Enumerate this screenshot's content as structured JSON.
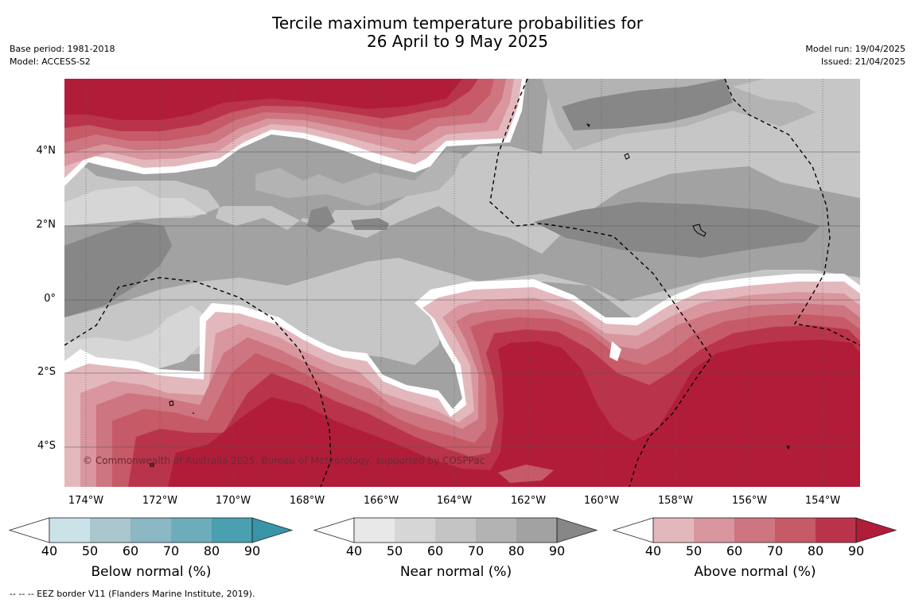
{
  "title_line1": "Tercile maximum temperature probabilities for",
  "title_line2": "26 April to 9 May 2025",
  "meta_left": [
    "Base period: 1981-2018",
    "Model: ACCESS-S2"
  ],
  "meta_right": [
    "Model run: 19/04/2025",
    "Issued: 21/04/2025"
  ],
  "lat_labels": [
    "4°N",
    "2°N",
    "0°",
    "2°S",
    "4°S"
  ],
  "lon_labels": [
    "174°W",
    "172°W",
    "170°W",
    "168°W",
    "166°W",
    "164°W",
    "162°W",
    "160°W",
    "158°W",
    "156°W",
    "154°W"
  ],
  "copyright": "© Commonwealth of Australia 2025, Bureau of Meteorology, supported by COSPPac",
  "colorbars": [
    {
      "title": "Below normal (%)",
      "ticks": [
        "40",
        "50",
        "60",
        "70",
        "80",
        "90"
      ],
      "colors": [
        "#cbe2e9",
        "#a9c7cd",
        "#8cb7c4",
        "#6dadbb",
        "#4a9fb0",
        "#3895a8"
      ]
    },
    {
      "title": "Near normal (%)",
      "ticks": [
        "40",
        "50",
        "60",
        "70",
        "80",
        "90"
      ],
      "colors": [
        "#e8e8e8",
        "#d6d6d6",
        "#c4c4c4",
        "#b3b3b3",
        "#a2a2a2",
        "#878787"
      ]
    },
    {
      "title": "Above normal (%)",
      "ticks": [
        "40",
        "50",
        "60",
        "70",
        "80",
        "90"
      ],
      "colors": [
        "#e3b8bd",
        "#d9969f",
        "#cd7580",
        "#c65a66",
        "#b9344a",
        "#b11d39"
      ]
    }
  ],
  "footnote": "--  --  -- EEZ border V11 (Flanders Marine Institute, 2019).",
  "colors": {
    "above_max": "#b11d39",
    "near_max": "#878787"
  }
}
